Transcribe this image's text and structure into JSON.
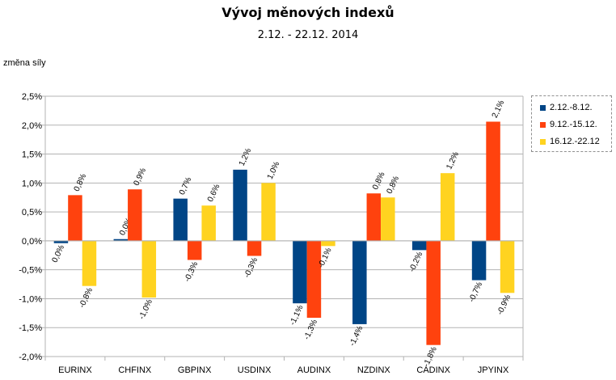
{
  "chart_data": {
    "type": "bar",
    "title": "Vývoj měnových indexů",
    "subtitle": "2.12. - 22.12. 2014",
    "ylabel": "změna síly",
    "xlabel": "",
    "categories": [
      "EURINX",
      "CHFINX",
      "GBPINX",
      "USDINX",
      "AUDINX",
      "NZDINX",
      "CADINX",
      "JPYINX"
    ],
    "ylim": [
      -2.0,
      2.5
    ],
    "yticks": [
      {
        "value": 2.5,
        "label": "2,5%"
      },
      {
        "value": 2.0,
        "label": "2,0%"
      },
      {
        "value": 1.5,
        "label": "1,5%"
      },
      {
        "value": 1.0,
        "label": "1,0%"
      },
      {
        "value": 0.5,
        "label": "0,5%"
      },
      {
        "value": 0.0,
        "label": "0,0%"
      },
      {
        "value": -0.5,
        "label": "-0,5%"
      },
      {
        "value": -1.0,
        "label": "-1,0%"
      },
      {
        "value": -1.5,
        "label": "-1,5%"
      },
      {
        "value": -2.0,
        "label": "-2,0%"
      }
    ],
    "grid": true,
    "legend_position": "right",
    "series": [
      {
        "name": "2.12.-8.12.",
        "color": "#004586",
        "values": [
          -0.04,
          0.03,
          0.73,
          1.23,
          -1.08,
          -1.44,
          -0.16,
          -0.68
        ],
        "labels": [
          "0,0%",
          "0,0%",
          "0,7%",
          "1,2%",
          "-1,1%",
          "-1,4%",
          "-0,2%",
          "-0,7%"
        ]
      },
      {
        "name": "9.12.-15.12.",
        "color": "#ff420e",
        "values": [
          0.79,
          0.89,
          -0.33,
          -0.26,
          -1.33,
          0.82,
          -1.8,
          2.06
        ],
        "labels": [
          "0,8%",
          "0,9%",
          "-0,3%",
          "-0,3%",
          "-1,3%",
          "0,8%",
          "-1,8%",
          "2,1%"
        ]
      },
      {
        "name": "16.12.-22.12",
        "color": "#ffd320",
        "values": [
          -0.78,
          -0.98,
          0.61,
          1.0,
          -0.09,
          0.75,
          1.17,
          -0.9
        ],
        "labels": [
          "-0,8%",
          "-1,0%",
          "0,6%",
          "1,0%",
          "-0,1%",
          "0,8%",
          "1,2%",
          "-0,9%"
        ]
      }
    ]
  }
}
